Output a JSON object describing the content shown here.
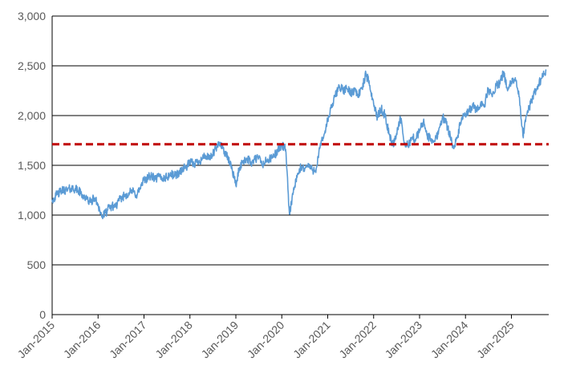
{
  "chart_data": {
    "type": "line",
    "title": "",
    "xlabel": "",
    "ylabel": "",
    "ylim": [
      0,
      3000
    ],
    "xlim": [
      "2015-01",
      "2025-10"
    ],
    "grid": "horizontal",
    "legend": "none",
    "y_ticks": [
      0,
      500,
      1000,
      1500,
      2000,
      2500,
      3000
    ],
    "y_tick_labels": [
      "0",
      "500",
      "1,000",
      "1,500",
      "2,000",
      "2,500",
      "3,000"
    ],
    "x_ticks": [
      "2015-01",
      "2016-01",
      "2017-01",
      "2018-01",
      "2019-01",
      "2020-01",
      "2021-01",
      "2022-01",
      "2023-01",
      "2024-01",
      "2025-01"
    ],
    "x_tick_labels": [
      "Jan-2015",
      "Jan-2016",
      "Jan-2017",
      "Jan-2018",
      "Jan-2019",
      "Jan-2020",
      "Jan-2021",
      "Jan-2022",
      "Jan-2023",
      "Jan-2024",
      "Jan-2025"
    ],
    "series": [
      {
        "color": "#5b9bd5",
        "style": "solid",
        "points": [
          [
            "2015-01",
            1150
          ],
          [
            "2015-02",
            1195
          ],
          [
            "2015-03",
            1230
          ],
          [
            "2015-04",
            1255
          ],
          [
            "2015-05",
            1250
          ],
          [
            "2015-06",
            1270
          ],
          [
            "2015-07",
            1265
          ],
          [
            "2015-08",
            1240
          ],
          [
            "2015-09",
            1200
          ],
          [
            "2015-10",
            1160
          ],
          [
            "2015-11",
            1130
          ],
          [
            "2015-12",
            1170
          ],
          [
            "2016-01",
            1110
          ],
          [
            "2016-02",
            980
          ],
          [
            "2016-03",
            1020
          ],
          [
            "2016-04",
            1080
          ],
          [
            "2016-05",
            1090
          ],
          [
            "2016-06",
            1110
          ],
          [
            "2016-07",
            1170
          ],
          [
            "2016-08",
            1200
          ],
          [
            "2016-09",
            1220
          ],
          [
            "2016-10",
            1240
          ],
          [
            "2016-11",
            1200
          ],
          [
            "2016-12",
            1270
          ],
          [
            "2017-01",
            1350
          ],
          [
            "2017-02",
            1380
          ],
          [
            "2017-03",
            1390
          ],
          [
            "2017-04",
            1360
          ],
          [
            "2017-05",
            1390
          ],
          [
            "2017-06",
            1370
          ],
          [
            "2017-07",
            1380
          ],
          [
            "2017-08",
            1410
          ],
          [
            "2017-09",
            1400
          ],
          [
            "2017-10",
            1420
          ],
          [
            "2017-11",
            1460
          ],
          [
            "2017-12",
            1480
          ],
          [
            "2018-01",
            1530
          ],
          [
            "2018-02",
            1510
          ],
          [
            "2018-03",
            1540
          ],
          [
            "2018-04",
            1560
          ],
          [
            "2018-05",
            1600
          ],
          [
            "2018-06",
            1560
          ],
          [
            "2018-07",
            1610
          ],
          [
            "2018-08",
            1680
          ],
          [
            "2018-09",
            1730
          ],
          [
            "2018-10",
            1640
          ],
          [
            "2018-11",
            1560
          ],
          [
            "2018-12",
            1470
          ],
          [
            "2019-01",
            1300
          ],
          [
            "2019-02",
            1480
          ],
          [
            "2019-03",
            1550
          ],
          [
            "2019-04",
            1570
          ],
          [
            "2019-05",
            1520
          ],
          [
            "2019-06",
            1560
          ],
          [
            "2019-07",
            1580
          ],
          [
            "2019-08",
            1500
          ],
          [
            "2019-09",
            1550
          ],
          [
            "2019-10",
            1560
          ],
          [
            "2019-11",
            1600
          ],
          [
            "2019-12",
            1650
          ],
          [
            "2020-01",
            1700
          ],
          [
            "2020-02",
            1660
          ],
          [
            "2020-03",
            1010
          ],
          [
            "2020-04",
            1230
          ],
          [
            "2020-05",
            1380
          ],
          [
            "2020-06",
            1480
          ],
          [
            "2020-07",
            1470
          ],
          [
            "2020-08",
            1500
          ],
          [
            "2020-09",
            1450
          ],
          [
            "2020-10",
            1470
          ],
          [
            "2020-11",
            1680
          ],
          [
            "2020-12",
            1800
          ],
          [
            "2021-01",
            1950
          ],
          [
            "2021-02",
            2080
          ],
          [
            "2021-03",
            2200
          ],
          [
            "2021-04",
            2300
          ],
          [
            "2021-05",
            2250
          ],
          [
            "2021-06",
            2270
          ],
          [
            "2021-07",
            2230
          ],
          [
            "2021-08",
            2260
          ],
          [
            "2021-09",
            2210
          ],
          [
            "2021-10",
            2270
          ],
          [
            "2021-11",
            2420
          ],
          [
            "2021-12",
            2300
          ],
          [
            "2022-01",
            2120
          ],
          [
            "2022-02",
            1980
          ],
          [
            "2022-03",
            2070
          ],
          [
            "2022-04",
            2000
          ],
          [
            "2022-05",
            1820
          ],
          [
            "2022-06",
            1700
          ],
          [
            "2022-07",
            1820
          ],
          [
            "2022-08",
            1980
          ],
          [
            "2022-09",
            1720
          ],
          [
            "2022-10",
            1700
          ],
          [
            "2022-11",
            1780
          ],
          [
            "2022-12",
            1760
          ],
          [
            "2023-01",
            1850
          ],
          [
            "2023-02",
            1940
          ],
          [
            "2023-03",
            1800
          ],
          [
            "2023-04",
            1760
          ],
          [
            "2023-05",
            1740
          ],
          [
            "2023-06",
            1850
          ],
          [
            "2023-07",
            1990
          ],
          [
            "2023-08",
            1920
          ],
          [
            "2023-09",
            1800
          ],
          [
            "2023-10",
            1670
          ],
          [
            "2023-11",
            1800
          ],
          [
            "2023-12",
            1980
          ],
          [
            "2024-01",
            1990
          ],
          [
            "2024-02",
            2050
          ],
          [
            "2024-03",
            2100
          ],
          [
            "2024-04",
            2040
          ],
          [
            "2024-05",
            2130
          ],
          [
            "2024-06",
            2110
          ],
          [
            "2024-07",
            2270
          ],
          [
            "2024-08",
            2190
          ],
          [
            "2024-09",
            2300
          ],
          [
            "2024-10",
            2320
          ],
          [
            "2024-11",
            2440
          ],
          [
            "2024-12",
            2250
          ],
          [
            "2025-01",
            2330
          ],
          [
            "2025-02",
            2380
          ],
          [
            "2025-03",
            2190
          ],
          [
            "2025-04",
            1800
          ],
          [
            "2025-05",
            2000
          ],
          [
            "2025-06",
            2120
          ],
          [
            "2025-07",
            2230
          ],
          [
            "2025-08",
            2310
          ],
          [
            "2025-09",
            2380
          ],
          [
            "2025-10",
            2460
          ]
        ]
      },
      {
        "color": "#c00000",
        "style": "dashed",
        "points": [
          [
            "2015-01",
            1712
          ],
          [
            "2025-10",
            1712
          ]
        ]
      }
    ]
  }
}
